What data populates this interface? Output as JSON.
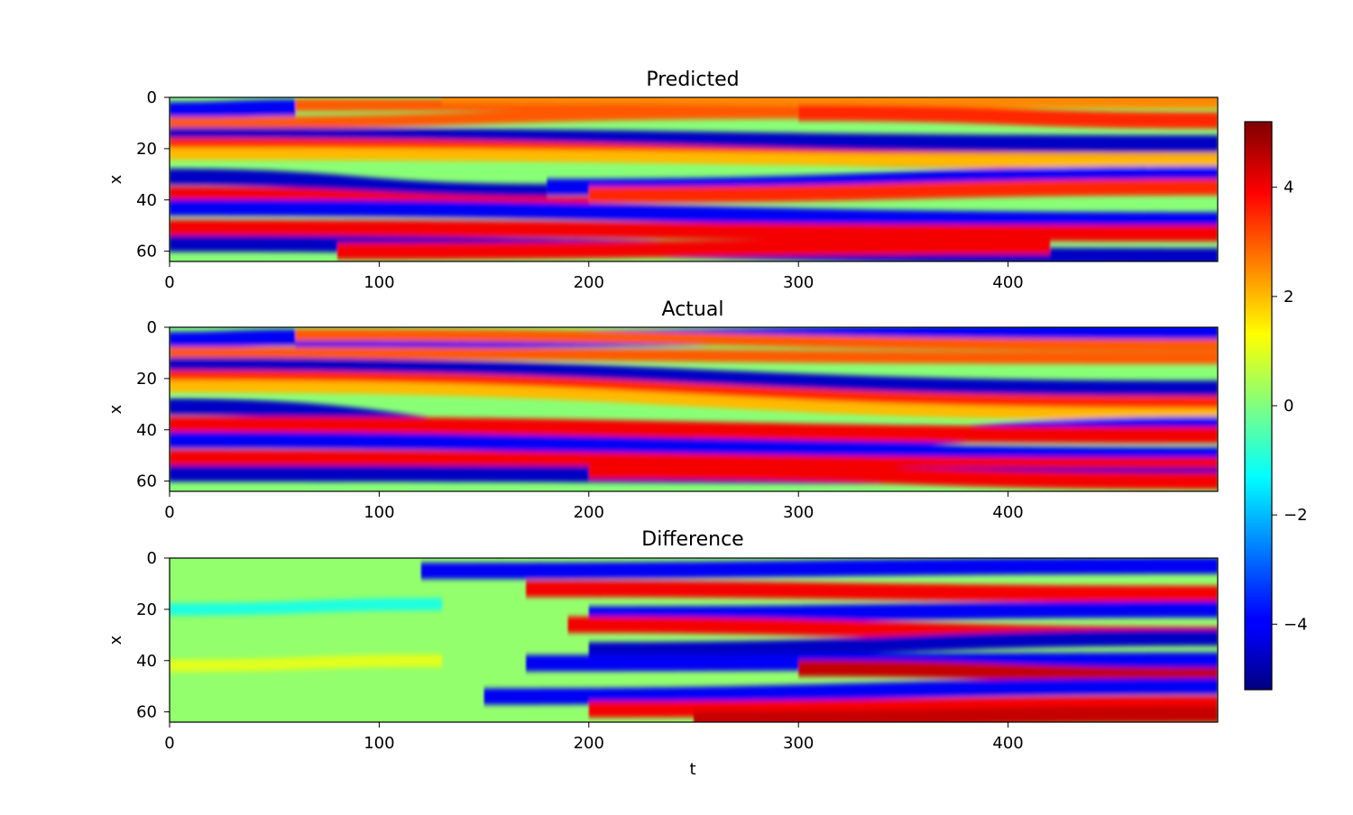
{
  "chart_data": [
    {
      "type": "heatmap",
      "title": "Predicted",
      "xlabel": "",
      "ylabel": "x",
      "xlim": [
        0,
        500
      ],
      "ylim": [
        64,
        0
      ],
      "xticks": [
        "0",
        "100",
        "200",
        "300",
        "400"
      ],
      "yticks": [
        "0",
        "20",
        "40",
        "60"
      ],
      "colormap": "jet",
      "bands": [
        {
          "x0": 0,
          "y0": 5,
          "x1": 60,
          "y1": 4,
          "v": -4
        },
        {
          "x0": 60,
          "y0": 3,
          "x1": 500,
          "y1": 1,
          "v": 3
        },
        {
          "x0": 130,
          "y0": 0,
          "x1": 500,
          "y1": 2,
          "v": 2.5
        },
        {
          "x0": 0,
          "y0": 10,
          "x1": 300,
          "y1": 6,
          "v": 3
        },
        {
          "x0": 300,
          "y0": 6,
          "x1": 500,
          "y1": 9,
          "v": 3.5
        },
        {
          "x0": 0,
          "y0": 15,
          "x1": 500,
          "y1": 18,
          "v": -4.5
        },
        {
          "x0": 0,
          "y0": 19,
          "x1": 500,
          "y1": 25,
          "v": 3.5
        },
        {
          "x0": 0,
          "y0": 22,
          "x1": 500,
          "y1": 25,
          "v": 2
        },
        {
          "x0": 0,
          "y0": 31,
          "x1": 180,
          "y1": 37,
          "v": -4.5
        },
        {
          "x0": 180,
          "y0": 35,
          "x1": 500,
          "y1": 30,
          "v": -4
        },
        {
          "x0": 0,
          "y0": 38,
          "x1": 200,
          "y1": 42,
          "v": 4
        },
        {
          "x0": 200,
          "y0": 38,
          "x1": 500,
          "y1": 35,
          "v": 3.5
        },
        {
          "x0": 0,
          "y0": 43,
          "x1": 500,
          "y1": 48,
          "v": -4
        },
        {
          "x0": 0,
          "y0": 51,
          "x1": 500,
          "y1": 53,
          "v": 4
        },
        {
          "x0": 0,
          "y0": 57,
          "x1": 500,
          "y1": 62,
          "v": -4.5
        },
        {
          "x0": 80,
          "y0": 60,
          "x1": 420,
          "y1": 58,
          "v": 4
        }
      ]
    },
    {
      "type": "heatmap",
      "title": "Actual",
      "xlabel": "",
      "ylabel": "x",
      "xlim": [
        0,
        500
      ],
      "ylim": [
        64,
        0
      ],
      "xticks": [
        "0",
        "100",
        "200",
        "300",
        "400"
      ],
      "yticks": [
        "0",
        "20",
        "40",
        "60"
      ],
      "colormap": "jet",
      "bands": [
        {
          "x0": 0,
          "y0": 5,
          "x1": 60,
          "y1": 4,
          "v": -4
        },
        {
          "x0": 60,
          "y0": 5,
          "x1": 500,
          "y1": 2,
          "v": -4
        },
        {
          "x0": 60,
          "y0": 3,
          "x1": 500,
          "y1": 7,
          "v": 3
        },
        {
          "x0": 0,
          "y0": 10,
          "x1": 500,
          "y1": 12,
          "v": 3
        },
        {
          "x0": 0,
          "y0": 15,
          "x1": 500,
          "y1": 24,
          "v": -4.5
        },
        {
          "x0": 0,
          "y0": 20,
          "x1": 500,
          "y1": 30,
          "v": 3.5
        },
        {
          "x0": 0,
          "y0": 23,
          "x1": 500,
          "y1": 34,
          "v": 2
        },
        {
          "x0": 0,
          "y0": 31,
          "x1": 250,
          "y1": 46,
          "v": -4.5
        },
        {
          "x0": 250,
          "y0": 46,
          "x1": 500,
          "y1": 38,
          "v": -4
        },
        {
          "x0": 0,
          "y0": 38,
          "x1": 500,
          "y1": 42,
          "v": 4
        },
        {
          "x0": 0,
          "y0": 44,
          "x1": 500,
          "y1": 50,
          "v": -4
        },
        {
          "x0": 0,
          "y0": 51,
          "x1": 500,
          "y1": 54,
          "v": 4
        },
        {
          "x0": 0,
          "y0": 57,
          "x1": 500,
          "y1": 58,
          "v": -4.5
        },
        {
          "x0": 200,
          "y0": 56,
          "x1": 500,
          "y1": 60,
          "v": 4
        }
      ]
    },
    {
      "type": "heatmap",
      "title": "Difference",
      "xlabel": "t",
      "ylabel": "x",
      "xlim": [
        0,
        500
      ],
      "ylim": [
        64,
        0
      ],
      "xticks": [
        "0",
        "100",
        "200",
        "300",
        "400"
      ],
      "yticks": [
        "0",
        "20",
        "40",
        "60"
      ],
      "colormap": "jet",
      "bands": [
        {
          "x0": 0,
          "y0": 20,
          "x1": 130,
          "y1": 18,
          "v": -1
        },
        {
          "x0": 0,
          "y0": 42,
          "x1": 130,
          "y1": 40,
          "v": 1
        },
        {
          "x0": 120,
          "y0": 5,
          "x1": 500,
          "y1": 3,
          "v": -4
        },
        {
          "x0": 170,
          "y0": 12,
          "x1": 500,
          "y1": 14,
          "v": 4
        },
        {
          "x0": 200,
          "y0": 22,
          "x1": 500,
          "y1": 20,
          "v": -4
        },
        {
          "x0": 190,
          "y0": 26,
          "x1": 500,
          "y1": 30,
          "v": 4
        },
        {
          "x0": 200,
          "y0": 36,
          "x1": 500,
          "y1": 31,
          "v": -4.5
        },
        {
          "x0": 170,
          "y0": 41,
          "x1": 500,
          "y1": 40,
          "v": -4
        },
        {
          "x0": 300,
          "y0": 43,
          "x1": 500,
          "y1": 46,
          "v": 4.5
        },
        {
          "x0": 150,
          "y0": 54,
          "x1": 500,
          "y1": 50,
          "v": -4
        },
        {
          "x0": 200,
          "y0": 59,
          "x1": 500,
          "y1": 57,
          "v": 4
        },
        {
          "x0": 250,
          "y0": 63,
          "x1": 500,
          "y1": 61,
          "v": 4.5
        }
      ]
    }
  ],
  "colorbar": {
    "range": [
      -5.2,
      5.2
    ],
    "ticks": [
      4,
      2,
      0,
      -2,
      -4
    ],
    "tick_labels": [
      "4",
      "2",
      "0",
      "−2",
      "−4"
    ]
  }
}
